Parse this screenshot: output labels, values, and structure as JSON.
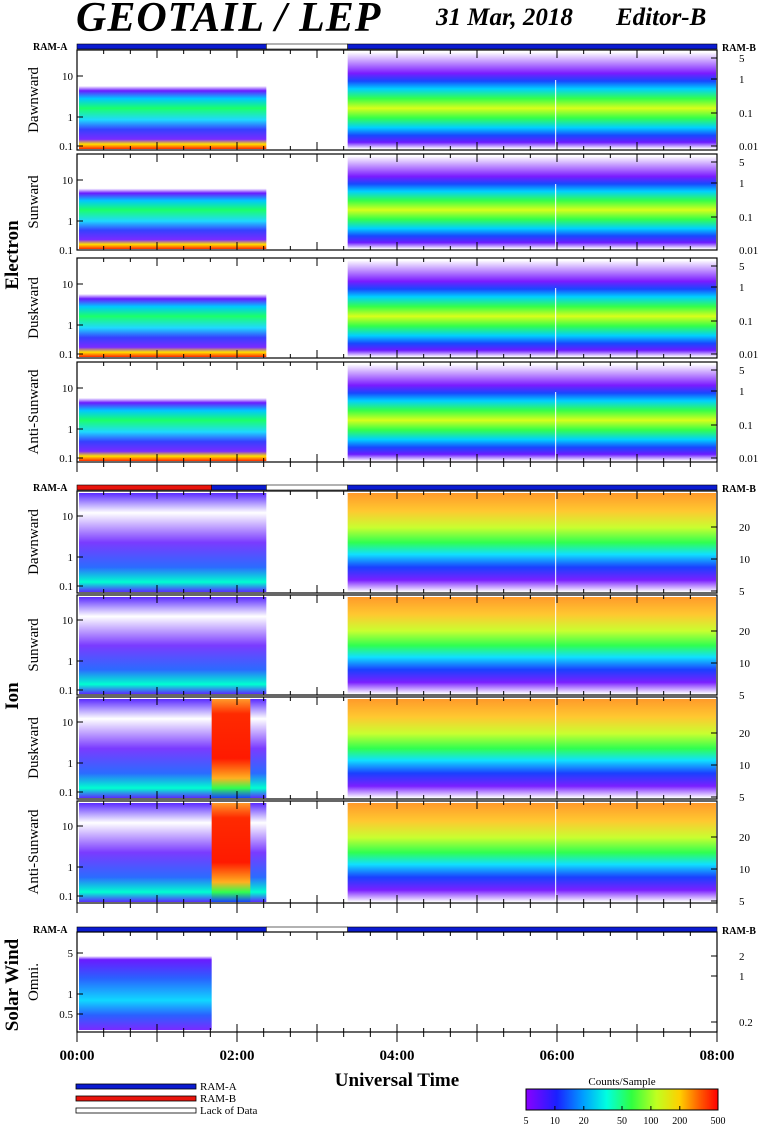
{
  "header": {
    "title": "GEOTAIL / LEP",
    "date": "31 Mar, 2018",
    "editor": "Editor-B"
  },
  "chart_data": {
    "type": "heatmap",
    "xlabel": "Universal Time",
    "x_ticks": [
      "00:00",
      "02:00",
      "04:00",
      "06:00",
      "08:00"
    ],
    "xlim": [
      "00:00",
      "08:00"
    ],
    "ram_labels": {
      "left": "RAM-A",
      "right": "RAM-B"
    },
    "groups": [
      {
        "name": "Electron",
        "status_bar": [
          {
            "from": "00:00",
            "to": "02:22",
            "mode": "RAM-A"
          },
          {
            "from": "02:22",
            "to": "03:23",
            "mode": "Lack of Data"
          },
          {
            "from": "03:23",
            "to": "08:00",
            "mode": "RAM-A"
          }
        ],
        "panels": [
          {
            "name": "Dawnward",
            "left_ticks": [
              "10",
              "1",
              "0.1"
            ],
            "right_ticks": [
              "5",
              "1",
              "0.1",
              "0.01"
            ]
          },
          {
            "name": "Sunward",
            "left_ticks": [
              "10",
              "1",
              "0.1"
            ],
            "right_ticks": [
              "5",
              "1",
              "0.1",
              "0.01"
            ]
          },
          {
            "name": "Duskward",
            "left_ticks": [
              "10",
              "1",
              "0.1"
            ],
            "right_ticks": [
              "5",
              "1",
              "0.1",
              "0.01"
            ]
          },
          {
            "name": "Anti-Sunward",
            "left_ticks": [
              "10",
              "1",
              "0.1"
            ],
            "right_ticks": [
              "5",
              "1",
              "0.1",
              "0.01"
            ]
          }
        ]
      },
      {
        "name": "Ion",
        "status_bar": [
          {
            "from": "00:00",
            "to": "01:41",
            "mode": "RAM-B"
          },
          {
            "from": "01:41",
            "to": "02:22",
            "mode": "RAM-A"
          },
          {
            "from": "02:22",
            "to": "03:23",
            "mode": "Lack of Data"
          },
          {
            "from": "03:23",
            "to": "08:00",
            "mode": "RAM-A"
          }
        ],
        "panels": [
          {
            "name": "Dawnward",
            "left_ticks": [
              "10",
              "1",
              "0.1"
            ],
            "right_ticks": [
              "20",
              "10",
              "5"
            ]
          },
          {
            "name": "Sunward",
            "left_ticks": [
              "10",
              "1",
              "0.1"
            ],
            "right_ticks": [
              "20",
              "10",
              "5"
            ]
          },
          {
            "name": "Duskward",
            "left_ticks": [
              "10",
              "1",
              "0.1"
            ],
            "right_ticks": [
              "20",
              "10",
              "5"
            ]
          },
          {
            "name": "Anti-Sunward",
            "left_ticks": [
              "10",
              "1",
              "0.1"
            ],
            "right_ticks": [
              "20",
              "10",
              "5"
            ]
          }
        ]
      },
      {
        "name": "Solar Wind",
        "status_bar": [
          {
            "from": "00:00",
            "to": "02:22",
            "mode": "RAM-A"
          },
          {
            "from": "02:22",
            "to": "03:23",
            "mode": "Lack of Data"
          },
          {
            "from": "03:23",
            "to": "08:00",
            "mode": "RAM-A"
          }
        ],
        "panels": [
          {
            "name": "Omni.",
            "left_ticks": [
              "5",
              "1",
              "0.5"
            ],
            "right_ticks": [
              "2",
              "1",
              "0.2"
            ]
          }
        ]
      }
    ],
    "legend": {
      "items": [
        {
          "label": "RAM-A",
          "color": "#0b1bd0"
        },
        {
          "label": "RAM-B",
          "color": "#e8140c"
        },
        {
          "label": "Lack of Data",
          "color": "#ffffff"
        }
      ]
    },
    "colorbar": {
      "title": "Counts/Sample",
      "ticks": [
        "5",
        "10",
        "20",
        "50",
        "100",
        "200",
        "500"
      ],
      "scale": "log",
      "range": [
        5,
        500
      ]
    }
  }
}
